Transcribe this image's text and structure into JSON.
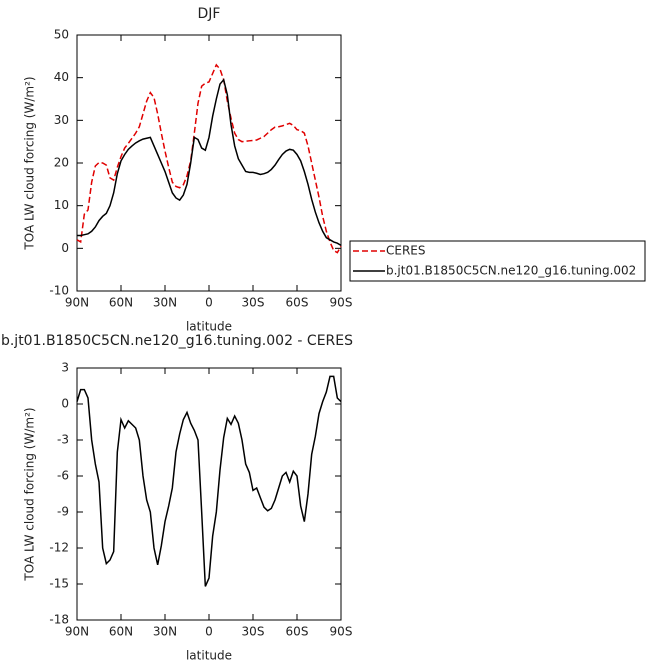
{
  "chart_data": [
    {
      "type": "line",
      "title": "DJF",
      "xlabel": "latitude",
      "ylabel": "TOA LW cloud forcing (W/m²)",
      "x": [
        90,
        87.5,
        85,
        82.5,
        80,
        77.5,
        75,
        72.5,
        70,
        67.5,
        65,
        62.5,
        60,
        57.5,
        55,
        52.5,
        50,
        47.5,
        45,
        42.5,
        40,
        37.5,
        35,
        32.5,
        30,
        27.5,
        25,
        22.5,
        20,
        17.5,
        15,
        12.5,
        10,
        7.5,
        5,
        2.5,
        0,
        -2.5,
        -5,
        -7.5,
        -10,
        -12.5,
        -15,
        -17.5,
        -20,
        -22.5,
        -25,
        -27.5,
        -30,
        -32.5,
        -35,
        -37.5,
        -40,
        -42.5,
        -45,
        -47.5,
        -50,
        -52.5,
        -55,
        -57.5,
        -60,
        -62.5,
        -65,
        -67.5,
        -70,
        -72.5,
        -75,
        -77.5,
        -80,
        -82.5,
        -85,
        -87.5,
        -90
      ],
      "series": [
        {
          "name": "CERES",
          "color": "#e00000",
          "line_style": "dashed",
          "values": [
            2,
            1.5,
            8,
            9,
            15.5,
            19.3,
            20.1,
            20,
            19.5,
            16.5,
            16,
            19,
            21.5,
            23.5,
            24.6,
            25.8,
            27,
            28.5,
            31.5,
            34.5,
            36.5,
            35.3,
            31.5,
            27,
            22.8,
            19,
            15.5,
            14.5,
            14.2,
            14.9,
            17,
            20.5,
            27,
            34,
            38,
            38.7,
            39,
            41,
            43,
            42,
            39.5,
            34.5,
            30.5,
            27,
            25.5,
            25,
            25.1,
            25.2,
            25.3,
            25.4,
            25.8,
            26.2,
            27,
            27.8,
            28.4,
            28.5,
            28.7,
            29,
            29.3,
            28.8,
            27.8,
            27.6,
            27,
            24,
            20,
            16,
            12,
            7.5,
            4,
            1.5,
            -0.5,
            -1,
            0.5
          ]
        },
        {
          "name": "b.jt01.B1850C5CN.ne120_g16.tuning.002",
          "color": "#000000",
          "line_style": "solid",
          "values": [
            3,
            3,
            3.2,
            3.4,
            4,
            5,
            6.5,
            7.5,
            8.2,
            10,
            13,
            17.5,
            20.5,
            22,
            23.2,
            24,
            24.7,
            25.2,
            25.6,
            25.8,
            26,
            24,
            22,
            20,
            18,
            15.5,
            13,
            11.8,
            11.3,
            12.5,
            15,
            20,
            26,
            25.5,
            23.5,
            23,
            26,
            31,
            35,
            38.5,
            39.5,
            36,
            29,
            24,
            21,
            19.5,
            18,
            17.8,
            17.8,
            17.6,
            17.3,
            17.5,
            17.8,
            18.5,
            19.5,
            20.8,
            22,
            22.8,
            23.2,
            23,
            22,
            20.5,
            18,
            15,
            11.5,
            8.5,
            6,
            4,
            2.5,
            2,
            1.5,
            1.2,
            0.7
          ]
        }
      ],
      "xlim": [
        90,
        -90
      ],
      "xticks": [
        {
          "value": 90,
          "label": "90N"
        },
        {
          "value": 60,
          "label": "60N"
        },
        {
          "value": 30,
          "label": "30N"
        },
        0,
        {
          "value": -30,
          "label": "30S"
        },
        {
          "value": -60,
          "label": "60S"
        },
        {
          "value": -90,
          "label": "90S"
        }
      ],
      "ylim": [
        -10,
        50
      ],
      "yticks": [
        -10,
        0,
        10,
        20,
        30,
        40,
        50
      ],
      "legend": "right"
    },
    {
      "type": "line",
      "title": "b.jt01.B1850C5CN.ne120_g16.tuning.002 - CERES",
      "xlabel": "latitude",
      "ylabel": "TOA LW cloud forcing (W/m²)",
      "x": [
        90,
        87.5,
        85,
        82.5,
        80,
        77.5,
        75,
        72.5,
        70,
        67.5,
        65,
        62.5,
        60,
        57.5,
        55,
        52.5,
        50,
        47.5,
        45,
        42.5,
        40,
        37.5,
        35,
        32.5,
        30,
        27.5,
        25,
        22.5,
        20,
        17.5,
        15,
        12.5,
        10,
        7.5,
        5,
        2.5,
        0,
        -2.5,
        -5,
        -7.5,
        -10,
        -12.5,
        -15,
        -17.5,
        -20,
        -22.5,
        -25,
        -27.5,
        -30,
        -32.5,
        -35,
        -37.5,
        -40,
        -42.5,
        -45,
        -47.5,
        -50,
        -52.5,
        -55,
        -57.5,
        -60,
        -62.5,
        -65,
        -67.5,
        -70,
        -72.5,
        -75,
        -77.5,
        -80,
        -82.5,
        -85,
        -87.5,
        -90
      ],
      "values": [
        0.2,
        1.2,
        1.2,
        0.5,
        -3,
        -5,
        -6.5,
        -12,
        -13.3,
        -13,
        -12.3,
        -4,
        -1.3,
        -2,
        -1.4,
        -1.7,
        -2,
        -3,
        -6,
        -8,
        -9,
        -12,
        -13.4,
        -11.8,
        -9.8,
        -8.5,
        -7,
        -4,
        -2.5,
        -1.3,
        -0.7,
        -1.6,
        -2.2,
        -3,
        -9,
        -15.2,
        -14.5,
        -11,
        -9,
        -5.5,
        -2.8,
        -1.2,
        -1.7,
        -1,
        -1.6,
        -3,
        -5,
        -5.7,
        -7.2,
        -7,
        -7.8,
        -8.6,
        -8.9,
        -8.7,
        -8,
        -7,
        -6,
        -5.7,
        -6.5,
        -5.6,
        -6,
        -8.5,
        -9.8,
        -7.5,
        -4.2,
        -2.7,
        -0.8,
        0.2,
        1,
        2.3,
        2.3,
        0.5,
        0.2
      ],
      "color": "#000000",
      "xlim": [
        90,
        -90
      ],
      "xticks": [
        {
          "value": 90,
          "label": "90N"
        },
        {
          "value": 60,
          "label": "60N"
        },
        {
          "value": 30,
          "label": "30N"
        },
        0,
        {
          "value": -30,
          "label": "30S"
        },
        {
          "value": -60,
          "label": "60S"
        },
        {
          "value": -90,
          "label": "90S"
        }
      ],
      "ylim": [
        -18,
        3
      ],
      "yticks": [
        -18,
        -15,
        -12,
        -9,
        -6,
        -3,
        0,
        3
      ]
    }
  ]
}
